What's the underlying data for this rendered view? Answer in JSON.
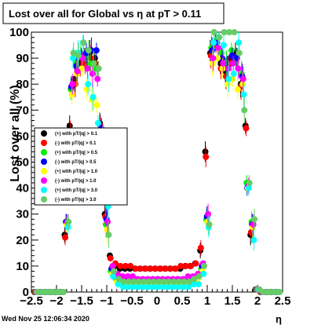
{
  "title": "Lost over all for Global vs    η at pT > 0.11",
  "date_stamp": "Wed Nov 25 12:06:34 2020",
  "chart_data": {
    "type": "scatter",
    "title": "Lost over all for Global vs    η at pT > 0.11",
    "xlabel": "η",
    "ylabel": "Lost over all (%)",
    "xlim": [
      -2.5,
      2.5
    ],
    "ylim": [
      0,
      100
    ],
    "x_ticks": [
      "−2.5",
      "−2",
      "−1.5",
      "−1",
      "−0.5",
      "0",
      "0.5",
      "1",
      "1.5",
      "2",
      "2.5"
    ],
    "y_ticks": [
      "0",
      "10",
      "20",
      "30",
      "40",
      "50",
      "60",
      "70",
      "80",
      "90",
      "100"
    ],
    "grid": false,
    "legend_position": "left-middle",
    "x": [
      -2.4,
      -2.3,
      -2.2,
      -2.1,
      -2.0,
      -1.9,
      -1.8,
      -1.7,
      -1.6,
      -1.5,
      -1.4,
      -1.3,
      -1.2,
      -1.1,
      -1.0,
      -0.9,
      -0.8,
      -0.7,
      -0.6,
      -0.5,
      -0.4,
      -0.3,
      -0.2,
      -0.1,
      0.0,
      0.1,
      0.2,
      0.3,
      0.4,
      0.5,
      0.6,
      0.7,
      0.8,
      0.9,
      1.0,
      1.1,
      1.2,
      1.3,
      1.4,
      1.5,
      1.6,
      1.7,
      1.8,
      1.9,
      2.0,
      2.1,
      2.2,
      2.3,
      2.4
    ],
    "series": [
      {
        "name": "(+) with pT/|q| > 0.1",
        "color": "#000000",
        "values": [
          0,
          0,
          0,
          0,
          0,
          0,
          22,
          64,
          82,
          88,
          90,
          92,
          90,
          65,
          30,
          14,
          10,
          9,
          9,
          9,
          9,
          9,
          9,
          9,
          9,
          9,
          9,
          9,
          9,
          9,
          10,
          10,
          11,
          16,
          54,
          92,
          96,
          88,
          85,
          90,
          92,
          80,
          64,
          22,
          1,
          0,
          0,
          0,
          0
        ]
      },
      {
        "name": "(-) with pT/|q| > 0.1",
        "color": "#ff0000",
        "values": [
          0,
          0,
          0,
          0,
          0,
          0,
          21,
          62,
          80,
          86,
          88,
          90,
          88,
          64,
          29,
          13,
          11,
          10,
          10,
          10,
          9,
          9,
          9,
          9,
          9,
          9,
          9,
          9,
          9,
          10,
          10,
          10,
          11,
          17,
          52,
          91,
          95,
          86,
          83,
          88,
          90,
          79,
          63,
          23,
          1,
          0,
          0,
          0,
          0
        ]
      },
      {
        "name": "(+) with pT/|q| > 0.5",
        "color": "#00ee00",
        "values": [
          0,
          0,
          0,
          0,
          0,
          0,
          27,
          78,
          88,
          92,
          90,
          88,
          86,
          60,
          26,
          8,
          5,
          4,
          4,
          3,
          3,
          3,
          3,
          3,
          3,
          3,
          3,
          3,
          3,
          3,
          4,
          4,
          5,
          9,
          28,
          94,
          97,
          92,
          88,
          93,
          90,
          84,
          42,
          27,
          1,
          0,
          0,
          0,
          0
        ]
      },
      {
        "name": "(-) with pT/|q| > 0.5",
        "color": "#0000ff",
        "values": [
          0,
          0,
          0,
          0,
          0,
          0,
          27,
          79,
          87,
          91,
          92,
          93,
          93,
          63,
          28,
          9,
          6,
          5,
          5,
          4,
          4,
          4,
          4,
          4,
          4,
          4,
          4,
          4,
          4,
          4,
          5,
          5,
          6,
          10,
          29,
          93,
          96,
          90,
          86,
          91,
          90,
          83,
          40,
          26,
          1,
          0,
          0,
          0,
          0
        ]
      },
      {
        "name": "(+) with pT/|q| > 1.0",
        "color": "#ffff00",
        "values": [
          0,
          0,
          0,
          0,
          0,
          0,
          26,
          76,
          84,
          86,
          78,
          74,
          72,
          55,
          24,
          7,
          4,
          3,
          3,
          3,
          3,
          3,
          3,
          3,
          3,
          3,
          3,
          3,
          3,
          3,
          3,
          4,
          5,
          8,
          27,
          88,
          90,
          86,
          80,
          82,
          78,
          80,
          40,
          25,
          1,
          0,
          0,
          0,
          0
        ]
      },
      {
        "name": "(-) with pT/|q| > 1.0",
        "color": "#ff00ff",
        "values": [
          0,
          0,
          0,
          0,
          0,
          0,
          27,
          80,
          85,
          90,
          86,
          84,
          82,
          60,
          27,
          10,
          7,
          6,
          6,
          6,
          5,
          5,
          5,
          5,
          5,
          5,
          5,
          5,
          5,
          5,
          6,
          6,
          7,
          11,
          30,
          90,
          94,
          88,
          86,
          88,
          86,
          82,
          41,
          26,
          1,
          0,
          0,
          0,
          0
        ]
      },
      {
        "name": "(+) with pT/|q| > 3.0",
        "color": "#00ffff",
        "values": [
          0,
          0,
          0,
          0,
          0,
          0,
          25,
          90,
          92,
          96,
          80,
          75,
          65,
          60,
          33,
          6,
          3,
          2,
          2,
          2,
          2,
          2,
          2,
          2,
          2,
          2,
          2,
          2,
          2,
          2,
          2,
          3,
          3,
          7,
          25,
          96,
          98,
          95,
          82,
          84,
          96,
          76,
          40,
          20,
          1,
          0,
          0,
          0,
          0
        ]
      },
      {
        "name": "(-) with pT/|q| > 3.0",
        "color": "#66cc66",
        "values": [
          0,
          0,
          0,
          0,
          0,
          0,
          27,
          92,
          91,
          96,
          93,
          88,
          86,
          60,
          22,
          8,
          5,
          4,
          4,
          4,
          4,
          4,
          4,
          4,
          4,
          4,
          4,
          4,
          4,
          4,
          4,
          5,
          6,
          10,
          26,
          100,
          98,
          100,
          100,
          100,
          92,
          70,
          42,
          28,
          1,
          0,
          0,
          0,
          0
        ]
      }
    ]
  }
}
